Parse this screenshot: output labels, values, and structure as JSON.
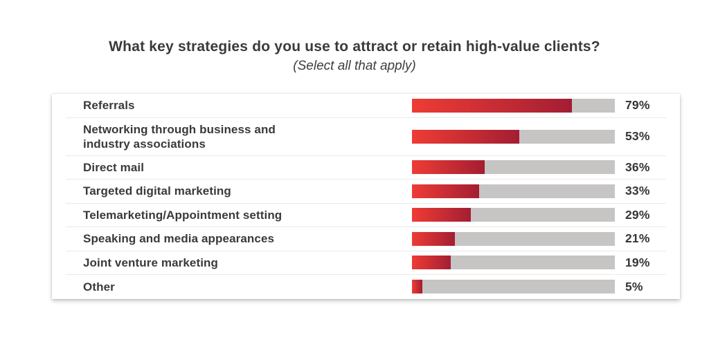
{
  "header": {
    "title_prefix": "What ",
    "title_emphasis": "key strategies",
    "title_suffix": " do you use to attract or retain high-value clients?",
    "subtitle": "(Select all that apply)"
  },
  "chart_data": {
    "type": "bar",
    "orientation": "horizontal",
    "title": "What key strategies do you use to attract or retain high-value clients?",
    "subtitle": "(Select all that apply)",
    "unit": "%",
    "xlim": [
      0,
      100
    ],
    "grid": false,
    "legend": "none",
    "categories": [
      "Referrals",
      "Networking through business and industry associations",
      "Direct mail",
      "Targeted digital marketing",
      "Telemarketing/Appointment setting",
      "Speaking and media appearances",
      "Joint venture marketing",
      "Other"
    ],
    "display_labels": [
      "Referrals",
      "Networking through business and\nindustry associations",
      "Direct mail",
      "Targeted digital marketing",
      "Telemarketing/Appointment setting",
      "Speaking and media appearances",
      "Joint venture marketing",
      "Other"
    ],
    "values": [
      79,
      53,
      36,
      33,
      29,
      21,
      19,
      5
    ],
    "value_labels": [
      "79%",
      "53%",
      "36%",
      "33%",
      "29%",
      "21%",
      "19%",
      "5%"
    ],
    "colors": {
      "bar_gradient_start": "#ee3c35",
      "bar_gradient_end": "#a31e33",
      "track": "#c7c4c4",
      "text": "#3b3a39",
      "divider": "#e9e9e9",
      "card_background": "#ffffff"
    }
  }
}
